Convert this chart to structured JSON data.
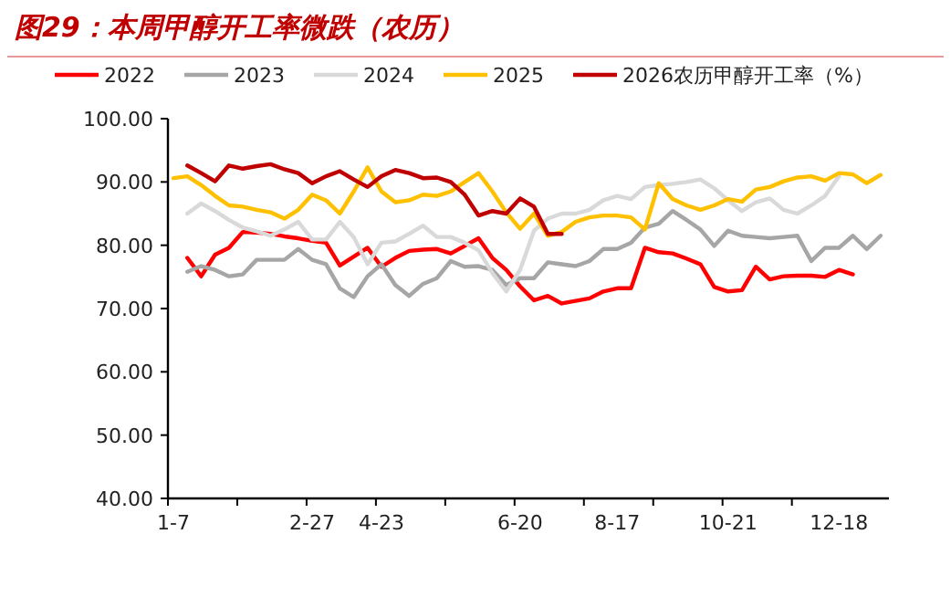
{
  "chart_data": {
    "type": "line",
    "title": "图29：本周甲醇开工率微跌（农历）",
    "categories": [
      "1-7",
      null,
      null,
      null,
      null,
      null,
      null,
      null,
      null,
      null,
      "2-27",
      null,
      null,
      null,
      null,
      "4-23",
      null,
      null,
      null,
      null,
      null,
      null,
      null,
      null,
      null,
      "6-20",
      null,
      null,
      null,
      null,
      null,
      null,
      "8-17",
      null,
      null,
      null,
      null,
      null,
      null,
      null,
      "10-21",
      null,
      null,
      null,
      null,
      null,
      null,
      null,
      "12-18",
      null,
      null,
      null
    ],
    "ylim": [
      40,
      100
    ],
    "yticks": [
      {
        "value": 40,
        "label": "40.00"
      },
      {
        "value": 50,
        "label": "50.00"
      },
      {
        "value": 60,
        "label": "60.00"
      },
      {
        "value": 70,
        "label": "70.00"
      },
      {
        "value": 80,
        "label": "80.00"
      },
      {
        "value": 90,
        "label": "90.00"
      },
      {
        "value": 100,
        "label": "100.00"
      }
    ],
    "legend": "top",
    "line_style": "solid",
    "series": [
      {
        "name": "2022",
        "color": "#ff0000",
        "values": [
          null,
          78.0,
          75.1,
          78.5,
          79.6,
          82.1,
          82.0,
          81.8,
          81.4,
          81.1,
          80.7,
          80.4,
          76.8,
          78.2,
          79.6,
          76.6,
          78.0,
          79.1,
          79.3,
          79.4,
          78.7,
          79.9,
          81.1,
          78.0,
          76.1,
          73.5,
          71.3,
          72.0,
          70.8,
          71.2,
          71.6,
          72.7,
          73.2,
          73.2,
          79.6,
          78.9,
          78.7,
          77.9,
          77.0,
          73.4,
          72.7,
          72.9,
          76.6,
          74.6,
          75.1,
          75.2,
          75.2,
          75.0,
          76.1,
          75.4,
          null,
          null
        ]
      },
      {
        "name": "2023",
        "color": "#a6a6a6",
        "values": [
          null,
          75.8,
          76.7,
          76.1,
          75.1,
          75.4,
          77.7,
          77.7,
          77.7,
          79.4,
          77.7,
          77.0,
          73.2,
          71.8,
          75.1,
          77.0,
          73.7,
          72.0,
          73.9,
          74.8,
          77.5,
          76.6,
          76.7,
          76.1,
          73.7,
          74.8,
          74.8,
          77.3,
          77.0,
          76.7,
          77.5,
          79.4,
          79.4,
          80.4,
          82.8,
          83.4,
          85.4,
          84.0,
          82.5,
          79.9,
          82.3,
          81.5,
          81.3,
          81.1,
          81.3,
          81.5,
          77.5,
          79.6,
          79.6,
          81.5,
          79.4,
          81.5
        ]
      },
      {
        "name": "2024",
        "color": "#d9d9d9",
        "values": [
          null,
          85.0,
          86.6,
          85.4,
          84.0,
          82.8,
          82.2,
          81.5,
          82.5,
          83.7,
          80.9,
          80.9,
          83.7,
          81.3,
          77.0,
          80.4,
          80.6,
          81.8,
          83.1,
          81.3,
          81.3,
          80.4,
          79.2,
          75.6,
          72.7,
          76.1,
          82.3,
          84.2,
          85.0,
          85.0,
          85.6,
          87.1,
          87.8,
          87.3,
          89.2,
          89.5,
          89.7,
          90.0,
          90.4,
          89.0,
          87.1,
          85.4,
          86.8,
          87.4,
          85.6,
          85.0,
          86.3,
          87.8,
          90.9,
          null,
          null,
          null
        ]
      },
      {
        "name": "2025",
        "color": "#ffc000",
        "values": [
          90.6,
          90.9,
          89.5,
          87.8,
          86.3,
          86.1,
          85.6,
          85.2,
          84.2,
          85.6,
          88.0,
          87.1,
          85.0,
          88.5,
          92.3,
          88.5,
          86.8,
          87.1,
          88.0,
          87.8,
          88.5,
          90.0,
          91.4,
          88.5,
          85.2,
          82.6,
          85.0,
          81.5,
          82.1,
          83.7,
          84.4,
          84.7,
          84.7,
          84.4,
          82.5,
          89.8,
          87.3,
          86.3,
          85.6,
          86.3,
          87.3,
          86.9,
          88.8,
          89.2,
          90.1,
          90.7,
          90.9,
          90.2,
          91.4,
          91.2,
          89.8,
          91.1
        ]
      },
      {
        "name": "2026农历甲醇开工率（%）",
        "color": "#c00000",
        "values": [
          null,
          92.6,
          91.4,
          90.1,
          92.6,
          92.1,
          92.5,
          92.8,
          92.0,
          91.4,
          89.8,
          90.9,
          91.7,
          90.4,
          89.2,
          90.9,
          91.9,
          91.4,
          90.6,
          90.7,
          90.0,
          88.0,
          84.7,
          85.4,
          85.0,
          87.4,
          86.1,
          81.8,
          81.8,
          null,
          null,
          null,
          null,
          null,
          null,
          null,
          null,
          null,
          null,
          null,
          null,
          null,
          null,
          null,
          null,
          null,
          null,
          null,
          null,
          null,
          null,
          null
        ]
      }
    ]
  }
}
